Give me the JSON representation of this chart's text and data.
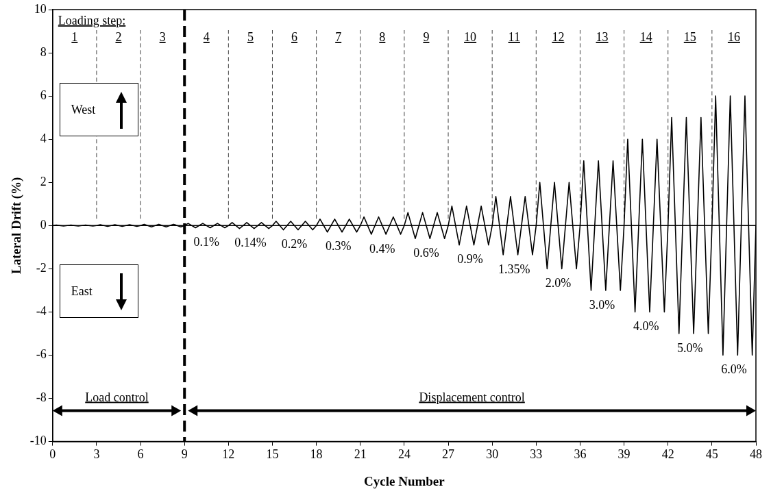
{
  "chart_data": {
    "type": "line",
    "xlabel": "Cycle Number",
    "ylabel": "Lateral Drift (%)",
    "x": [
      0,
      0.25,
      0.75,
      1,
      1.25,
      1.75,
      2,
      2.25,
      2.75,
      3,
      3.25,
      3.75,
      4,
      4.25,
      4.75,
      5,
      5.25,
      5.75,
      6,
      6.25,
      6.75,
      7,
      7.25,
      7.75,
      8,
      8.25,
      8.75,
      9,
      9.25,
      9.75,
      10,
      10.25,
      10.75,
      11,
      11.25,
      11.75,
      12,
      12.25,
      12.75,
      13,
      13.25,
      13.75,
      14,
      14.25,
      14.75,
      15,
      15.25,
      15.75,
      16,
      16.25,
      16.75,
      17,
      17.25,
      17.75,
      18,
      18.25,
      18.75,
      19,
      19.25,
      19.75,
      20,
      20.25,
      20.75,
      21,
      21.25,
      21.75,
      22,
      22.25,
      22.75,
      23,
      23.25,
      23.75,
      24,
      24.25,
      24.75,
      25,
      25.25,
      25.75,
      26,
      26.25,
      26.75,
      27,
      27.25,
      27.75,
      28,
      28.25,
      28.75,
      29,
      29.25,
      29.75,
      30,
      30.25,
      30.75,
      31,
      31.25,
      31.75,
      32,
      32.25,
      32.75,
      33,
      33.25,
      33.75,
      34,
      34.25,
      34.75,
      35,
      35.25,
      35.75,
      36,
      36.25,
      36.75,
      37,
      37.25,
      37.75,
      38,
      38.25,
      38.75,
      39,
      39.25,
      39.75,
      40,
      40.25,
      40.75,
      41,
      41.25,
      41.75,
      42,
      42.25,
      42.75,
      43,
      43.25,
      43.75,
      44,
      44.25,
      44.75,
      45,
      45.25,
      45.75,
      46,
      46.25,
      46.75,
      47,
      47.25,
      47.75,
      48
    ],
    "series": [
      {
        "color": "#000000",
        "values": [
          0,
          0.02,
          -0.02,
          0,
          0.02,
          -0.02,
          0,
          0.02,
          -0.02,
          0,
          0.04,
          -0.04,
          0,
          0.04,
          -0.04,
          0,
          0.04,
          -0.04,
          0,
          0.06,
          -0.06,
          0,
          0.06,
          -0.06,
          0,
          0.06,
          -0.06,
          0,
          0.1,
          -0.1,
          0,
          0.1,
          -0.1,
          0,
          0.1,
          -0.1,
          0,
          0.14,
          -0.14,
          0,
          0.14,
          -0.14,
          0,
          0.14,
          -0.14,
          0,
          0.2,
          -0.2,
          0,
          0.2,
          -0.2,
          0,
          0.2,
          -0.2,
          0,
          0.3,
          -0.3,
          0,
          0.3,
          -0.3,
          0,
          0.3,
          -0.3,
          0,
          0.4,
          -0.4,
          0,
          0.4,
          -0.4,
          0,
          0.4,
          -0.4,
          0,
          0.6,
          -0.6,
          0,
          0.6,
          -0.6,
          0,
          0.6,
          -0.6,
          0,
          0.9,
          -0.9,
          0,
          0.9,
          -0.9,
          0,
          0.9,
          -0.9,
          0,
          1.35,
          -1.35,
          0,
          1.35,
          -1.35,
          0,
          1.35,
          -1.35,
          0,
          2,
          -2,
          0,
          2,
          -2,
          0,
          2,
          -2,
          0,
          3,
          -3,
          0,
          3,
          -3,
          0,
          3,
          -3,
          0,
          4,
          -4,
          0,
          4,
          -4,
          0,
          4,
          -4,
          0,
          5,
          -5,
          0,
          5,
          -5,
          0,
          5,
          -5,
          0,
          6,
          -6,
          0,
          6,
          -6,
          0,
          6,
          -6,
          0
        ]
      }
    ],
    "xlim": [
      0,
      48
    ],
    "xticks": [
      0,
      3,
      6,
      9,
      12,
      15,
      18,
      21,
      24,
      27,
      30,
      33,
      36,
      39,
      42,
      45,
      48
    ],
    "ylim": [
      -10,
      10
    ],
    "yticks": [
      -10,
      -8,
      -6,
      -4,
      -2,
      0,
      2,
      4,
      6,
      8,
      10
    ],
    "marker": "none",
    "line_style": "solid",
    "legend": false,
    "ref_lines": [
      {
        "axis": "x",
        "value": 9,
        "line_style": "dashed",
        "color": "#000000"
      },
      {
        "axis": "x",
        "value": 3,
        "line_style": "dashed",
        "color": "#404040"
      },
      {
        "axis": "x",
        "value": 6,
        "line_style": "dashed",
        "color": "#404040"
      },
      {
        "axis": "x",
        "value": 12,
        "line_style": "dashed",
        "color": "#404040"
      },
      {
        "axis": "x",
        "value": 15,
        "line_style": "dashed",
        "color": "#404040"
      },
      {
        "axis": "x",
        "value": 18,
        "line_style": "dashed",
        "color": "#404040"
      },
      {
        "axis": "x",
        "value": 21,
        "line_style": "dashed",
        "color": "#404040"
      },
      {
        "axis": "x",
        "value": 24,
        "line_style": "dashed",
        "color": "#404040"
      },
      {
        "axis": "x",
        "value": 27,
        "line_style": "dashed",
        "color": "#404040"
      },
      {
        "axis": "x",
        "value": 30,
        "line_style": "dashed",
        "color": "#404040"
      },
      {
        "axis": "x",
        "value": 33,
        "line_style": "dashed",
        "color": "#404040"
      },
      {
        "axis": "x",
        "value": 36,
        "line_style": "dashed",
        "color": "#404040"
      },
      {
        "axis": "x",
        "value": 39,
        "line_style": "dashed",
        "color": "#404040"
      },
      {
        "axis": "x",
        "value": 42,
        "line_style": "dashed",
        "color": "#404040"
      },
      {
        "axis": "x",
        "value": 45,
        "line_style": "dashed",
        "color": "#404040"
      },
      {
        "axis": "y",
        "value": 0,
        "line_style": "solid",
        "color": "#000000"
      }
    ],
    "annotations": [
      "West",
      "East",
      "Loading step:",
      "1",
      "2",
      "3",
      "4",
      "5",
      "6",
      "7",
      "8",
      "9",
      "10",
      "11",
      "12",
      "13",
      "14",
      "15",
      "16",
      "0.1%",
      "0.14%",
      "0.2%",
      "0.3%",
      "0.4%",
      "0.6%",
      "0.9%",
      "1.35%",
      "2.0%",
      "3.0%",
      "4.0%",
      "5.0%",
      "6.0%",
      "Load control",
      "Displacement control"
    ]
  }
}
